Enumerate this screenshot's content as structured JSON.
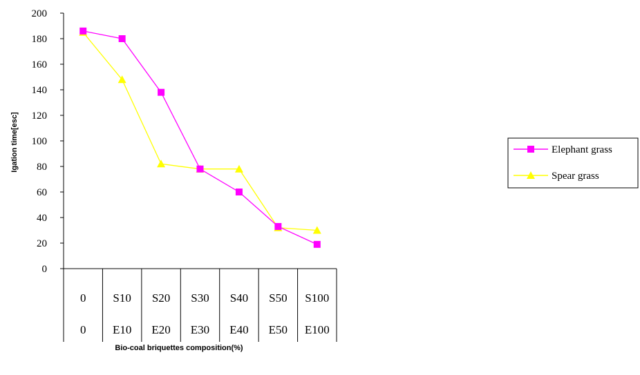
{
  "chart_data": {
    "type": "line",
    "title": "",
    "ylabel": "Igation time[esc]",
    "xlabel": "Bio-coal briquettes composition(%)",
    "ylim": [
      0,
      200
    ],
    "yticks": [
      0,
      20,
      40,
      60,
      80,
      100,
      120,
      140,
      160,
      180,
      200
    ],
    "categories_row1": [
      "0",
      "S10",
      "S20",
      "S30",
      "S40",
      "S50",
      "S100"
    ],
    "categories_row2": [
      "0",
      "E10",
      "E20",
      "E30",
      "E40",
      "E50",
      "E100"
    ],
    "series": [
      {
        "name": "Elephant grass",
        "color": "#ff00ff",
        "marker": "square",
        "values": [
          186,
          180,
          138,
          78,
          60,
          33,
          19
        ]
      },
      {
        "name": "Spear grass",
        "color": "#ffff00",
        "marker": "triangle",
        "values": [
          185,
          148,
          82,
          78,
          78,
          32,
          30
        ]
      }
    ],
    "grid": false,
    "legend_position": "right"
  }
}
